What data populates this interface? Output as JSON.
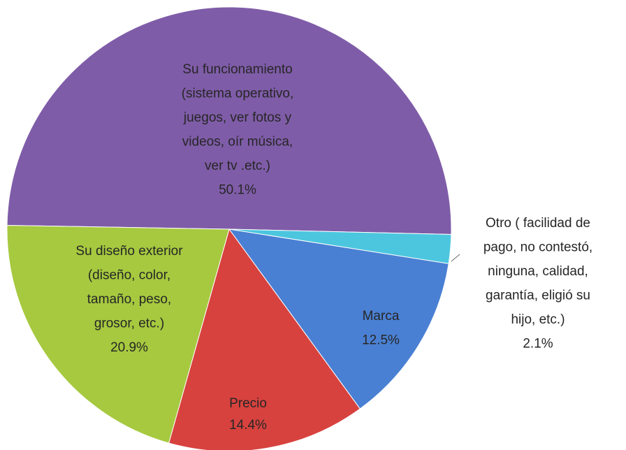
{
  "chart_data": {
    "type": "pie",
    "labels": [
      [
        "Su funcionamiento",
        "(sistema operativo,",
        "juegos, ver fotos y",
        "videos, oír música,",
        "ver tv .etc.)"
      ],
      [
        "Otro ( facilidad de",
        "pago, no contestó,",
        "ninguna, calidad,",
        "garantía, eligió su",
        "hijo, etc.)"
      ],
      [
        "Marca"
      ],
      [
        "Precio"
      ],
      [
        "Su diseño exterior",
        "(diseño, color,",
        "tamaño, peso,",
        "grosor, etc.)"
      ]
    ],
    "values": [
      50.1,
      2.1,
      12.5,
      14.4,
      20.9
    ],
    "value_labels": [
      "50.1%",
      "2.1%",
      "12.5%",
      "14.4%",
      "20.9%"
    ],
    "colors": [
      "#7f5ca8",
      "#4cc6de",
      "#4a80d3",
      "#d7423e",
      "#a6c93f"
    ]
  }
}
